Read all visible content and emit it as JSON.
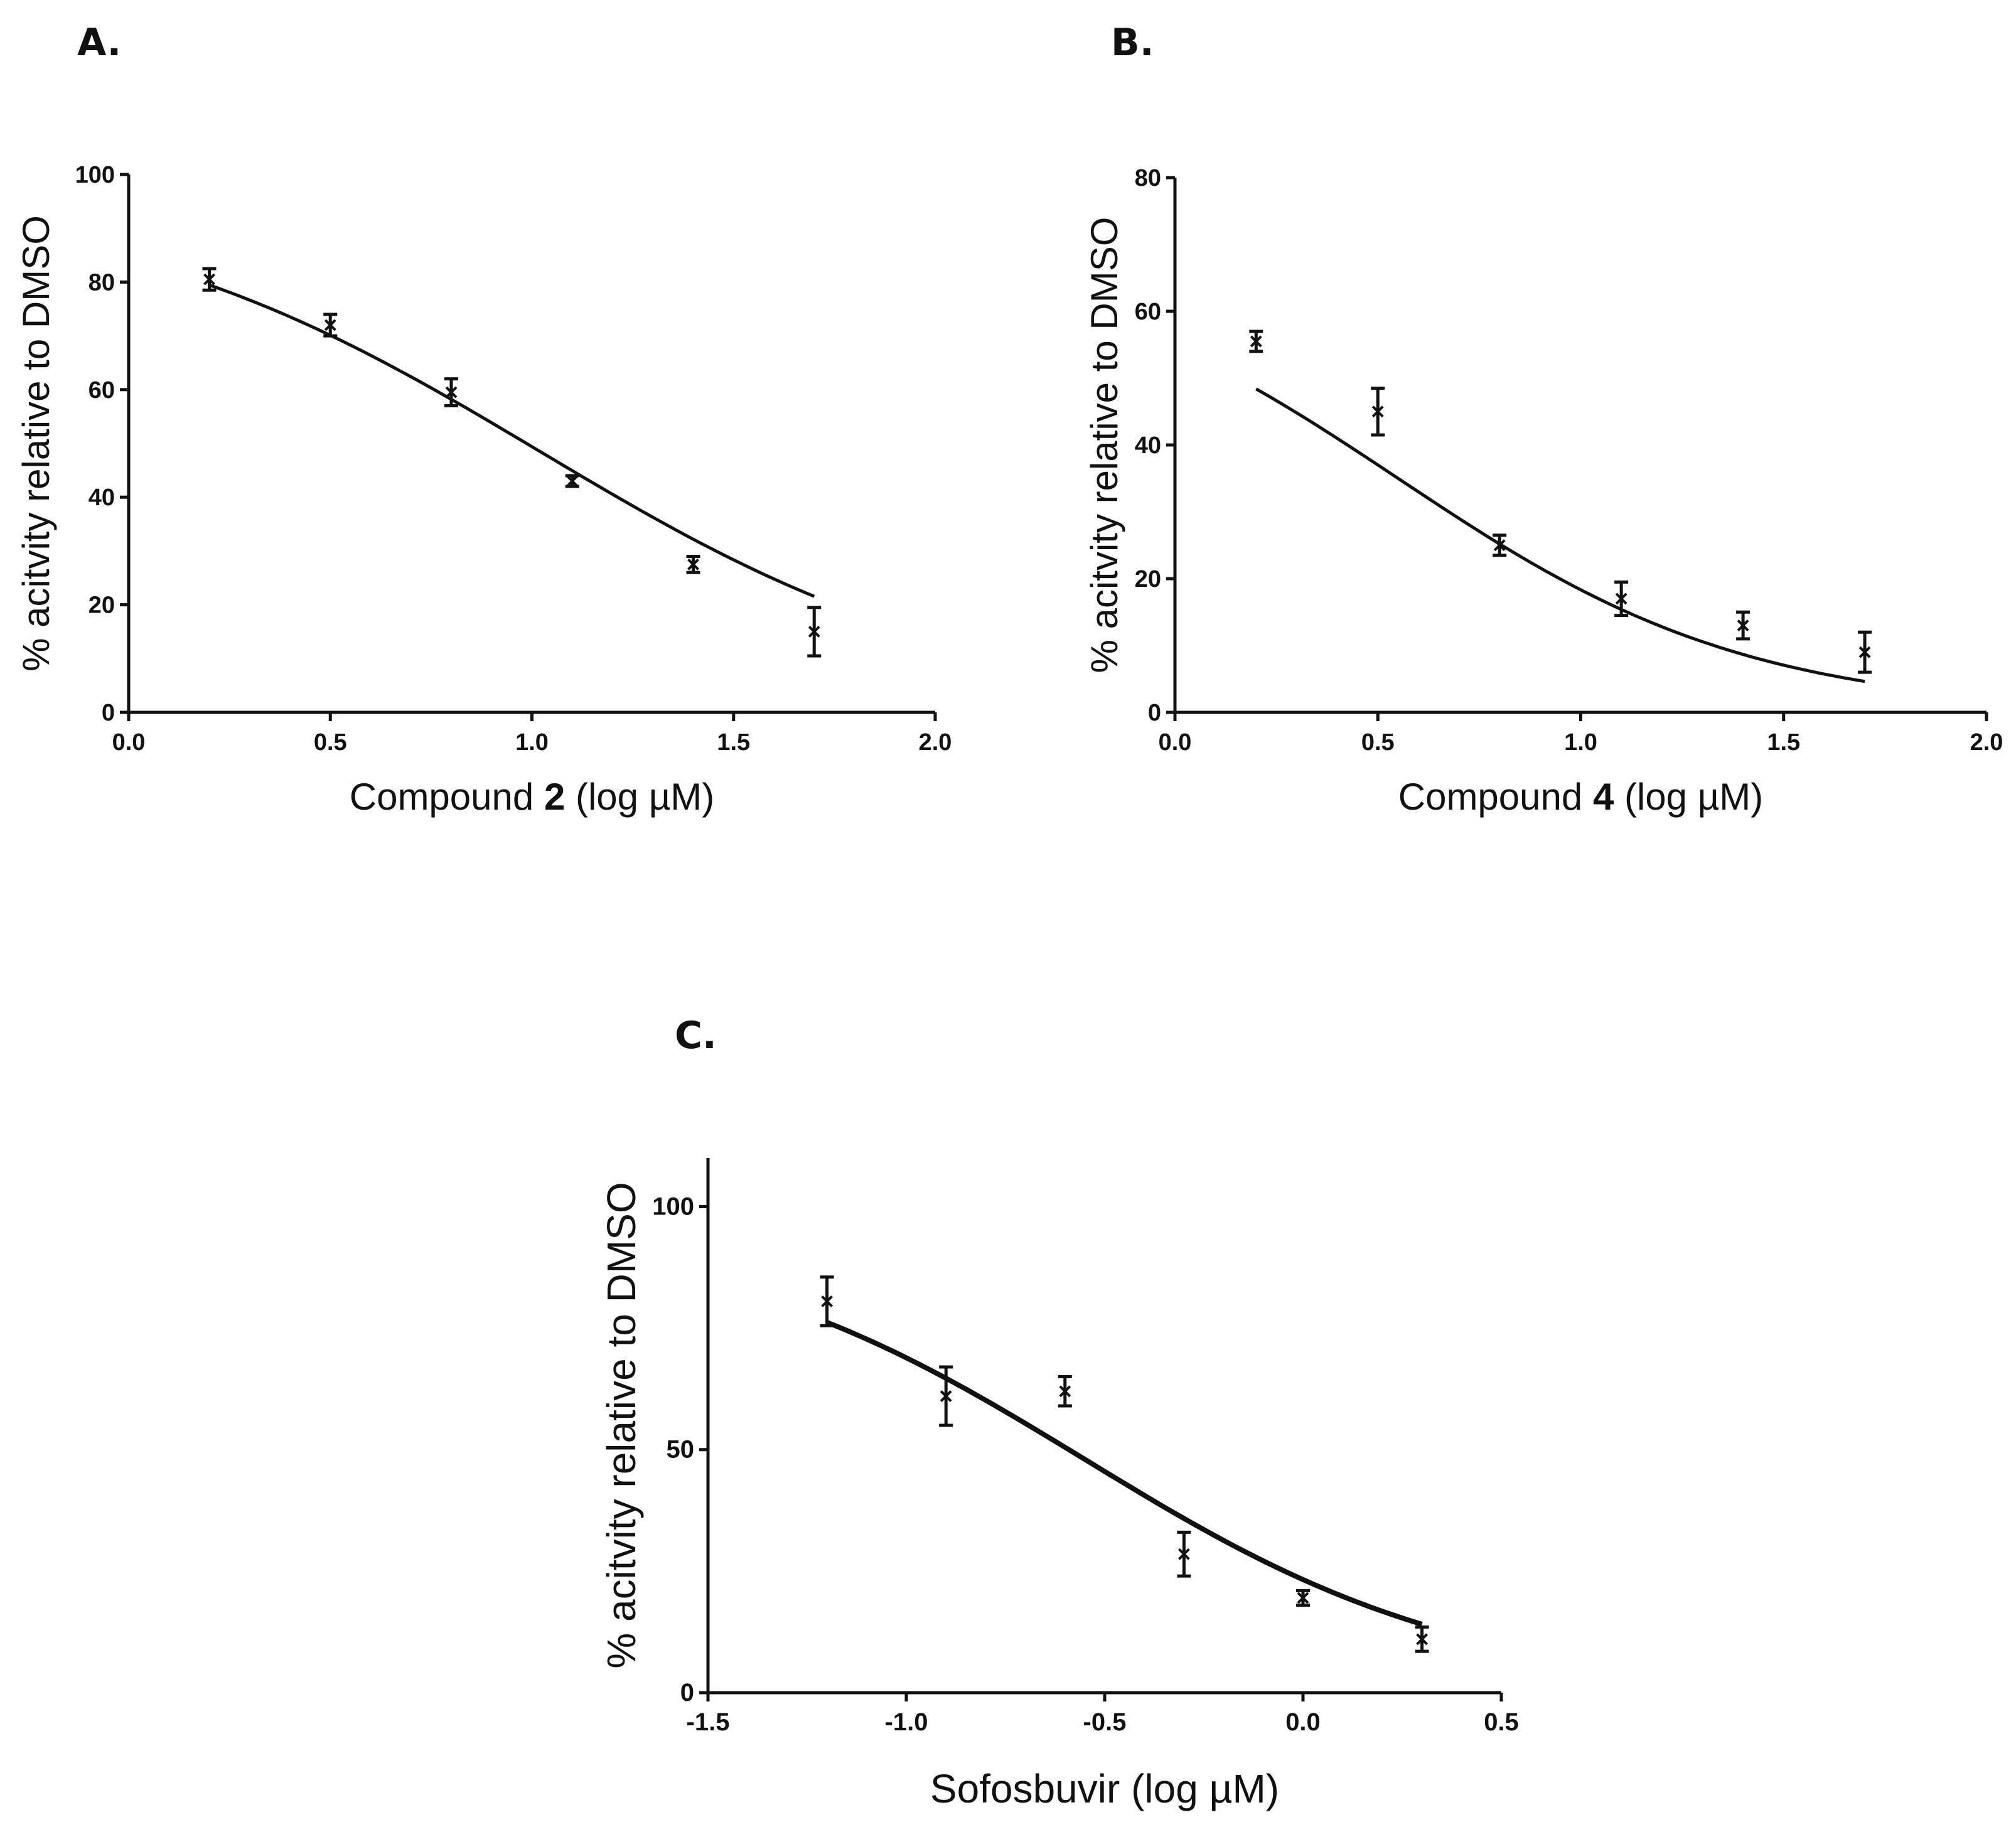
{
  "chart_data": [
    {
      "type": "scatter",
      "panel_label": "A.",
      "xlabel_prefix": "Compound ",
      "xlabel_bold": "2",
      "xlabel_suffix": " (log µM)",
      "ylabel": "% acitvity relative to DMSO",
      "xlim": [
        0.0,
        2.0
      ],
      "ylim": [
        0,
        100
      ],
      "xticks": [
        "0.0",
        "0.5",
        "1.0",
        "1.5",
        "2.0"
      ],
      "yticks": [
        "0",
        "20",
        "40",
        "60",
        "80",
        "100"
      ],
      "points": [
        {
          "x": 0.2,
          "y": 80.5,
          "err": 2.0
        },
        {
          "x": 0.5,
          "y": 72.0,
          "err": 2.0
        },
        {
          "x": 0.8,
          "y": 59.5,
          "err": 2.5
        },
        {
          "x": 1.1,
          "y": 43.0,
          "err": 1.0
        },
        {
          "x": 1.4,
          "y": 27.5,
          "err": 1.5
        },
        {
          "x": 1.7,
          "y": 15.0,
          "err": 4.5
        }
      ],
      "fit": {
        "top": 97.0,
        "bottom": 0.0,
        "logIC50": 1.02,
        "hill": 0.8,
        "from": 0.2,
        "to": 1.7
      }
    },
    {
      "type": "scatter",
      "panel_label": "B.",
      "xlabel_prefix": "Compound ",
      "xlabel_bold": "4",
      "xlabel_suffix": " (log µM)",
      "ylabel": "% acitvity relative to DMSO",
      "xlim": [
        0.0,
        2.0
      ],
      "ylim": [
        0,
        80
      ],
      "xticks": [
        "0.0",
        "0.5",
        "1.0",
        "1.5",
        "2.0"
      ],
      "yticks": [
        "0",
        "20",
        "40",
        "60",
        "80"
      ],
      "points": [
        {
          "x": 0.2,
          "y": 55.5,
          "err": 1.5
        },
        {
          "x": 0.5,
          "y": 45.0,
          "err": 3.5
        },
        {
          "x": 0.8,
          "y": 25.0,
          "err": 1.5
        },
        {
          "x": 1.1,
          "y": 17.0,
          "err": 2.5
        },
        {
          "x": 1.4,
          "y": 13.0,
          "err": 2.0
        },
        {
          "x": 1.7,
          "y": 9.0,
          "err": 3.0
        }
      ],
      "fit": {
        "top": 70.0,
        "bottom": 0.0,
        "logIC50": 0.55,
        "hill": 1.0,
        "from": 0.2,
        "to": 1.7
      }
    },
    {
      "type": "scatter",
      "panel_label": "C.",
      "xlabel_prefix": "Sofosbuvir",
      "xlabel_bold": "",
      "xlabel_suffix": " (log µM)",
      "ylabel": "% acitvity relative to DMSO",
      "xlim": [
        -1.5,
        0.5
      ],
      "ylim": [
        0,
        110
      ],
      "xticks": [
        "-1.5",
        "-1.0",
        "-0.5",
        "0.0",
        "0.5"
      ],
      "yticks": [
        "0",
        "50",
        "100"
      ],
      "points": [
        {
          "x": -1.2,
          "y": 80.5,
          "err": 5.0
        },
        {
          "x": -0.9,
          "y": 61.0,
          "err": 6.0
        },
        {
          "x": -0.6,
          "y": 62.0,
          "err": 3.0
        },
        {
          "x": -0.3,
          "y": 28.5,
          "err": 4.5
        },
        {
          "x": 0.0,
          "y": 19.5,
          "err": 1.5
        },
        {
          "x": 0.3,
          "y": 11.0,
          "err": 2.5
        }
      ],
      "fit": {
        "top": 96.0,
        "bottom": 0.0,
        "logIC50": -0.55,
        "hill": 0.9,
        "from": -1.2,
        "to": 0.3
      }
    }
  ]
}
